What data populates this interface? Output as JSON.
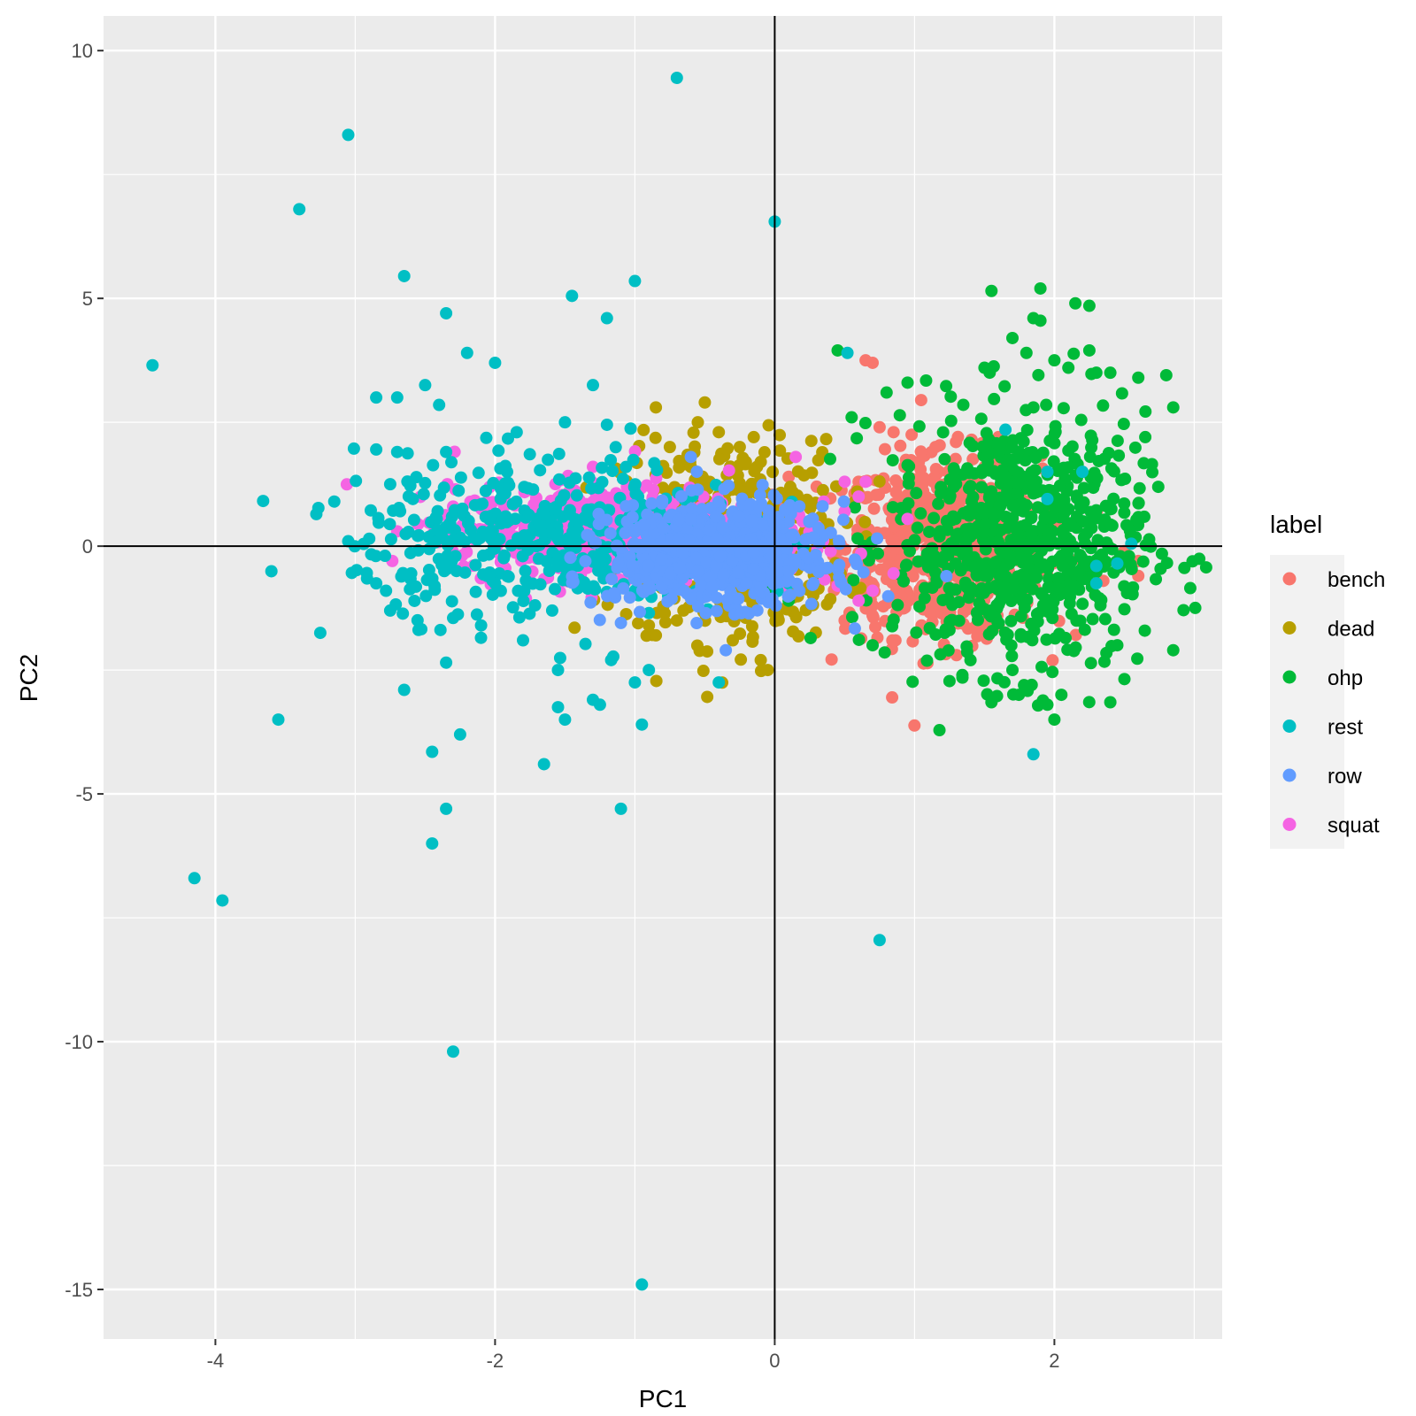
{
  "chart_data": {
    "type": "scatter",
    "title": "",
    "xlabel": "PC1",
    "ylabel": "PC2",
    "xlim": [
      -4.8,
      3.2
    ],
    "ylim": [
      -16.0,
      10.7
    ],
    "x_ticks": [
      -4,
      -2,
      0,
      2
    ],
    "x_tick_labels": [
      "-4",
      "-2",
      "0",
      "2"
    ],
    "y_ticks": [
      -15,
      -10,
      -5,
      0,
      5,
      10
    ],
    "y_tick_labels": [
      "-15",
      "-10",
      "-5",
      "0",
      "5",
      "10"
    ],
    "grid": true,
    "reference_lines": {
      "x": 0,
      "y": 0
    },
    "legend": {
      "title": "label",
      "position": "right"
    },
    "series": [
      {
        "name": "bench",
        "color": "#F8766D",
        "cluster": {
          "center": [
            1.2,
            0.0
          ],
          "spread": [
            0.35,
            0.9
          ],
          "n": 650
        },
        "points": [
          [
            0.65,
            3.75
          ],
          [
            0.7,
            3.7
          ],
          [
            0.1,
            1.4
          ],
          [
            0.6,
            1.3
          ],
          [
            0.75,
            2.4
          ],
          [
            0.85,
            2.3
          ],
          [
            1.15,
            2.0
          ],
          [
            1.6,
            2.2
          ],
          [
            1.3,
            -2.2
          ],
          [
            2.6,
            0.5
          ],
          [
            2.6,
            -0.6
          ],
          [
            2.6,
            -0.3
          ],
          [
            2.55,
            0.2
          ],
          [
            2.5,
            -0.1
          ],
          [
            0.05,
            0.8
          ],
          [
            0.5,
            -1.5
          ],
          [
            0.7,
            -1.4
          ],
          [
            2.35,
            -0.7
          ],
          [
            2.2,
            -0.5
          ],
          [
            0.3,
            1.2
          ],
          [
            1.5,
            1.6
          ],
          [
            2.05,
            0.3
          ],
          [
            2.2,
            0.8
          ],
          [
            1.05,
            -1.6
          ],
          [
            0.9,
            -1.2
          ],
          [
            0.4,
            0.2
          ]
        ]
      },
      {
        "name": "dead",
        "color": "#B79F00",
        "cluster": {
          "center": [
            -0.3,
            0.1
          ],
          "spread": [
            0.4,
            1.0
          ],
          "n": 420
        },
        "points": [
          [
            -0.85,
            2.8
          ],
          [
            -0.5,
            2.9
          ],
          [
            -0.55,
            2.5
          ],
          [
            -0.15,
            2.2
          ],
          [
            -0.1,
            1.7
          ],
          [
            -0.05,
            -2.5
          ],
          [
            -0.1,
            -2.3
          ],
          [
            -0.85,
            -1.8
          ],
          [
            -0.7,
            -1.5
          ],
          [
            -0.25,
            2.0
          ],
          [
            -0.3,
            -1.9
          ],
          [
            -0.6,
            1.6
          ],
          [
            -0.9,
            -1.6
          ],
          [
            0.1,
            -0.9
          ],
          [
            -0.75,
            2.0
          ],
          [
            -0.4,
            2.3
          ]
        ]
      },
      {
        "name": "ohp",
        "color": "#00BA38",
        "cluster": {
          "center": [
            1.75,
            0.1
          ],
          "spread": [
            0.45,
            1.3
          ],
          "n": 700
        },
        "points": [
          [
            1.55,
            5.15
          ],
          [
            1.9,
            5.2
          ],
          [
            2.15,
            4.9
          ],
          [
            2.25,
            4.85
          ],
          [
            1.85,
            4.6
          ],
          [
            1.9,
            4.55
          ],
          [
            1.7,
            4.2
          ],
          [
            2.25,
            3.95
          ],
          [
            0.45,
            3.95
          ],
          [
            1.5,
            3.6
          ],
          [
            1.8,
            3.9
          ],
          [
            2.0,
            3.75
          ],
          [
            2.1,
            3.6
          ],
          [
            2.4,
            3.5
          ],
          [
            2.6,
            3.4
          ],
          [
            2.8,
            3.45
          ],
          [
            2.85,
            2.8
          ],
          [
            2.65,
            2.2
          ],
          [
            0.95,
            3.3
          ],
          [
            0.8,
            3.1
          ],
          [
            0.55,
            2.6
          ],
          [
            2.85,
            -2.1
          ],
          [
            2.4,
            -3.15
          ],
          [
            1.55,
            -3.15
          ],
          [
            2.0,
            -3.5
          ],
          [
            1.95,
            -3.2
          ],
          [
            2.05,
            -3.0
          ],
          [
            0.7,
            -2.0
          ],
          [
            0.1,
            -1.1
          ],
          [
            -0.05,
            -0.9
          ],
          [
            2.45,
            -2.0
          ],
          [
            1.85,
            2.8
          ],
          [
            2.3,
            3.5
          ],
          [
            1.6,
            1.9
          ],
          [
            2.2,
            1.5
          ],
          [
            1.4,
            -2.3
          ],
          [
            1.7,
            -2.5
          ]
        ]
      },
      {
        "name": "rest",
        "color": "#00BFC4",
        "cluster": {
          "center": [
            -1.6,
            0.2
          ],
          "spread": [
            0.7,
            0.8
          ],
          "n": 420
        },
        "points": [
          [
            -0.7,
            9.45
          ],
          [
            -3.05,
            8.3
          ],
          [
            -3.4,
            6.8
          ],
          [
            0.0,
            6.55
          ],
          [
            -2.65,
            5.45
          ],
          [
            -1.0,
            5.35
          ],
          [
            -1.45,
            5.05
          ],
          [
            -1.2,
            4.6
          ],
          [
            -2.35,
            4.7
          ],
          [
            -4.45,
            3.65
          ],
          [
            -2.2,
            3.9
          ],
          [
            -2.0,
            3.7
          ],
          [
            -2.5,
            3.25
          ],
          [
            -1.3,
            3.25
          ],
          [
            -2.85,
            3.0
          ],
          [
            -2.7,
            3.0
          ],
          [
            -2.4,
            2.85
          ],
          [
            -1.5,
            2.5
          ],
          [
            -1.2,
            2.45
          ],
          [
            -2.35,
            1.9
          ],
          [
            -2.85,
            1.95
          ],
          [
            -2.7,
            1.9
          ],
          [
            -3.15,
            0.9
          ],
          [
            -2.75,
            1.25
          ],
          [
            0.52,
            3.9
          ],
          [
            1.65,
            2.35
          ],
          [
            1.95,
            1.5
          ],
          [
            2.2,
            1.5
          ],
          [
            -3.25,
            -1.75
          ],
          [
            -2.65,
            -2.9
          ],
          [
            -2.35,
            -2.35
          ],
          [
            -2.25,
            -3.8
          ],
          [
            -2.45,
            -4.15
          ],
          [
            -2.35,
            -5.3
          ],
          [
            -2.45,
            -6.0
          ],
          [
            -3.55,
            -3.5
          ],
          [
            -4.15,
            -6.7
          ],
          [
            -3.95,
            -7.15
          ],
          [
            -2.3,
            -10.2
          ],
          [
            -1.65,
            -4.4
          ],
          [
            -1.1,
            -5.3
          ],
          [
            -0.95,
            -3.6
          ],
          [
            -1.25,
            -3.2
          ],
          [
            -1.55,
            -3.25
          ],
          [
            -1.3,
            -3.1
          ],
          [
            -1.5,
            -3.5
          ],
          [
            -1.0,
            -2.75
          ],
          [
            -1.55,
            -2.5
          ],
          [
            -0.4,
            -2.75
          ],
          [
            -0.9,
            -2.5
          ],
          [
            0.75,
            -7.95
          ],
          [
            1.85,
            -4.2
          ],
          [
            -0.95,
            -14.9
          ],
          [
            -2.1,
            -1.6
          ],
          [
            -2.85,
            -0.75
          ],
          [
            -2.75,
            -1.3
          ],
          [
            -2.6,
            -0.55
          ],
          [
            -1.8,
            -1.9
          ],
          [
            2.3,
            -0.4
          ],
          [
            2.45,
            -0.35
          ],
          [
            2.55,
            0.05
          ],
          [
            2.3,
            -0.75
          ],
          [
            1.95,
            0.95
          ],
          [
            -3.05,
            0.1
          ],
          [
            -2.9,
            0.15
          ],
          [
            -2.3,
            -1.45
          ],
          [
            -2.0,
            -0.75
          ],
          [
            -1.0,
            -0.9
          ],
          [
            -0.9,
            -1.35
          ]
        ]
      },
      {
        "name": "row",
        "color": "#619CFF",
        "cluster": {
          "center": [
            -0.4,
            -0.15
          ],
          "spread": [
            0.38,
            0.5
          ],
          "n": 700
        },
        "points": [
          [
            -0.6,
            1.8
          ],
          [
            -0.35,
            -2.1
          ],
          [
            -1.1,
            -1.55
          ],
          [
            -1.15,
            -0.95
          ],
          [
            -0.9,
            -0.8
          ],
          [
            0.1,
            -0.5
          ]
        ]
      },
      {
        "name": "squat",
        "color": "#F564E3",
        "cluster": {
          "center": [
            -1.2,
            0.3
          ],
          "spread": [
            0.55,
            0.45
          ],
          "n": 650
        },
        "points": [
          [
            0.15,
            1.8
          ],
          [
            0.5,
            1.3
          ],
          [
            0.65,
            1.3
          ],
          [
            0.6,
            1.0
          ],
          [
            -2.7,
            0.3
          ],
          [
            -2.3,
            0.8
          ],
          [
            -0.2,
            -0.5
          ],
          [
            0.45,
            -0.8
          ],
          [
            0.7,
            -0.9
          ],
          [
            0.5,
            0.7
          ],
          [
            0.3,
            0.4
          ],
          [
            0.2,
            0.5
          ],
          [
            0.35,
            0.9
          ],
          [
            -1.3,
            1.6
          ],
          [
            0.6,
            -1.1
          ],
          [
            0.85,
            -0.55
          ],
          [
            0.95,
            0.55
          ],
          [
            0.25,
            -0.3
          ],
          [
            0.4,
            -0.1
          ]
        ]
      }
    ]
  }
}
